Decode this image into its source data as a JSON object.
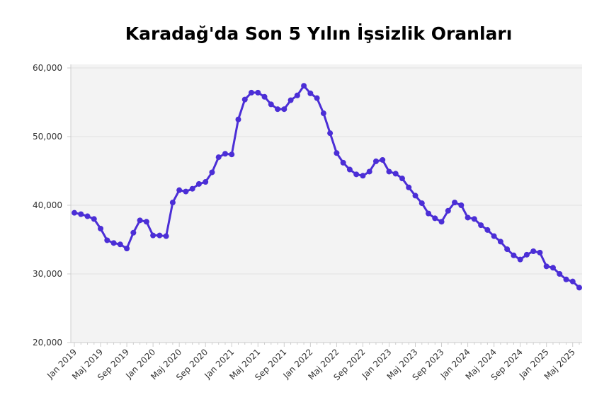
{
  "chart_data": {
    "type": "line",
    "title": "Karadağ'da Son 5 Yılın İşsizlik Oranları",
    "categories": [
      "Jan 2019",
      null,
      null,
      null,
      "Maj 2019",
      null,
      null,
      null,
      "Sep 2019",
      null,
      null,
      null,
      "Jan 2020",
      null,
      null,
      null,
      "Maj 2020",
      null,
      null,
      null,
      "Sep 2020",
      null,
      null,
      null,
      "Jan 2021",
      null,
      null,
      null,
      "Maj 2021",
      null,
      null,
      null,
      "Sep 2021",
      null,
      null,
      null,
      "Jan 2022",
      null,
      null,
      null,
      "Maj 2022",
      null,
      null,
      null,
      "Sep 2022",
      null,
      null,
      null,
      "Jan 2023",
      null,
      null,
      null,
      "Maj 2023",
      null,
      null,
      null,
      "Sep 2023",
      null,
      null,
      null,
      "Jan 2024",
      null,
      null,
      null,
      "Maj 2024",
      null,
      null,
      null,
      "Sep 2024",
      null,
      null,
      null,
      "Jan 2025",
      null,
      null,
      null,
      "Maj 2025",
      null
    ],
    "series": [
      {
        "color": "#4b2ed6",
        "values": [
          38900,
          38700,
          38400,
          38000,
          36600,
          34900,
          34500,
          34300,
          33700,
          36000,
          37800,
          37600,
          35600,
          35600,
          35500,
          40400,
          42200,
          42000,
          42400,
          43100,
          43400,
          44800,
          47000,
          47500,
          47400,
          52500,
          55400,
          56400,
          56400,
          55800,
          54700,
          54000,
          54000,
          55300,
          56000,
          57400,
          56300,
          55600,
          53400,
          50500,
          47600,
          46200,
          45200,
          44500,
          44300,
          44900,
          46400,
          46600,
          44900,
          44600,
          43900,
          42600,
          41400,
          40300,
          38800,
          38100,
          37600,
          39200,
          40400,
          40000,
          38200,
          38000,
          37100,
          36400,
          35500,
          34700,
          33600,
          32700,
          32100,
          32800,
          33300,
          33100,
          31100,
          30900,
          30000,
          29200,
          28900,
          28000
        ]
      }
    ],
    "ylim": [
      20000,
      60000
    ],
    "yticks": [
      {
        "value": 20000,
        "label": "20,000"
      },
      {
        "value": 30000,
        "label": "30,000"
      },
      {
        "value": 40000,
        "label": "40,000"
      },
      {
        "value": 50000,
        "label": "50,000"
      },
      {
        "value": 60000,
        "label": "60,000"
      }
    ],
    "grid": true
  }
}
